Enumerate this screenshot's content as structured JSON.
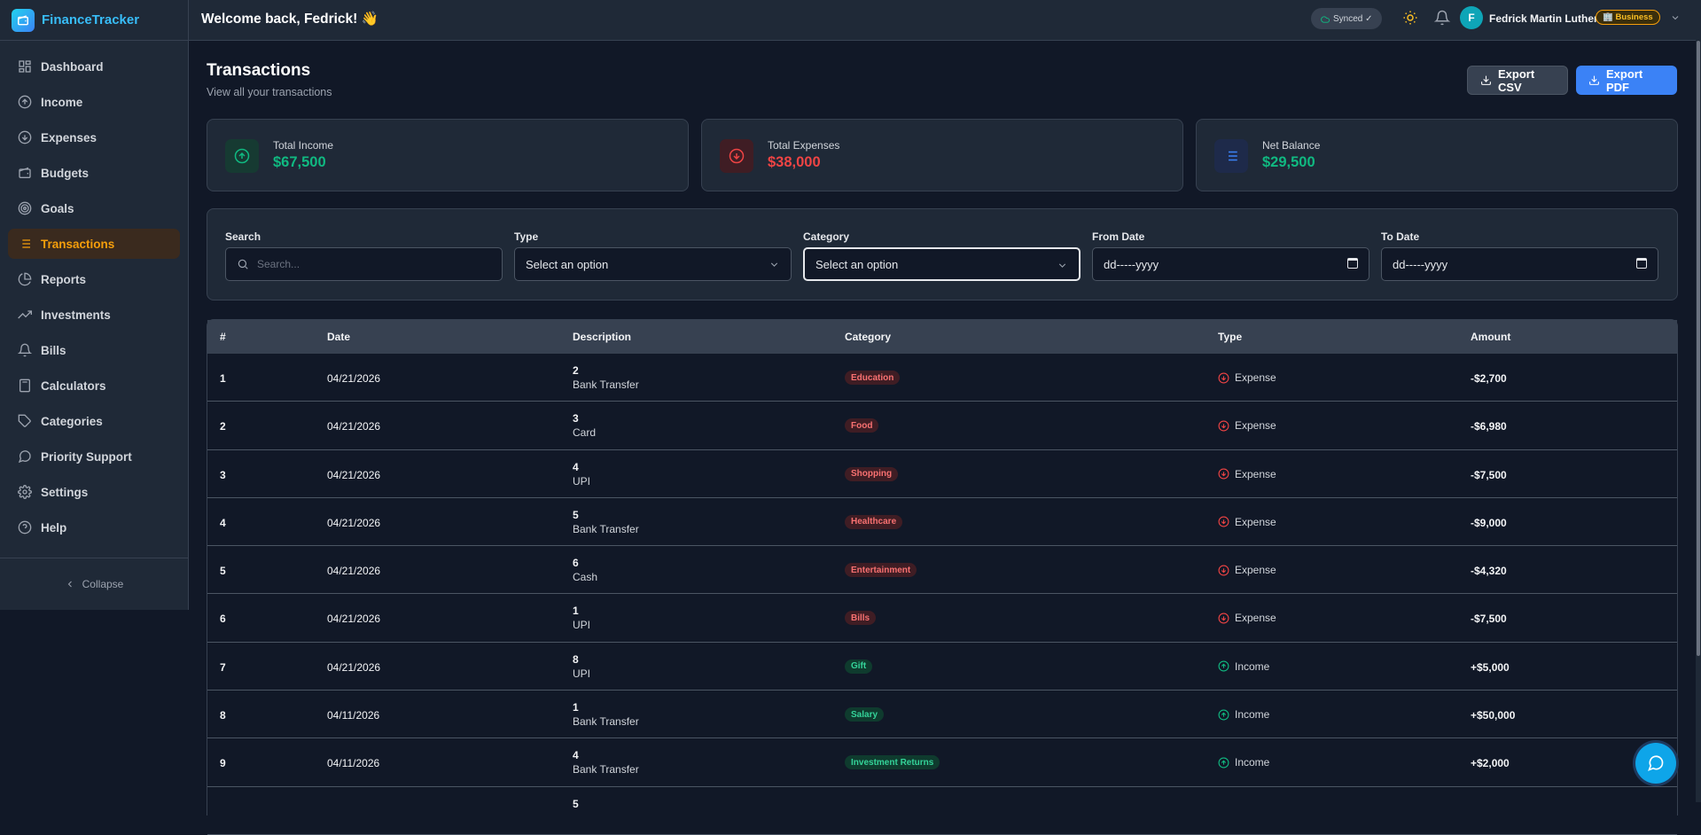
{
  "brand": {
    "name": "FinanceTracker"
  },
  "sidebar": {
    "items": [
      {
        "label": "Dashboard",
        "icon": "dashboard-icon"
      },
      {
        "label": "Income",
        "icon": "arrow-up-circle-icon"
      },
      {
        "label": "Expenses",
        "icon": "arrow-down-circle-icon"
      },
      {
        "label": "Budgets",
        "icon": "wallet-icon"
      },
      {
        "label": "Goals",
        "icon": "target-icon"
      },
      {
        "label": "Transactions",
        "icon": "list-icon",
        "active": true
      },
      {
        "label": "Reports",
        "icon": "pie-chart-icon"
      },
      {
        "label": "Investments",
        "icon": "trending-up-icon"
      },
      {
        "label": "Bills",
        "icon": "bell-icon"
      },
      {
        "label": "Calculators",
        "icon": "calculator-icon"
      },
      {
        "label": "Categories",
        "icon": "tag-icon"
      },
      {
        "label": "Priority Support",
        "icon": "message-icon"
      },
      {
        "label": "Settings",
        "icon": "gear-icon"
      },
      {
        "label": "Help",
        "icon": "help-circle-icon"
      }
    ],
    "collapse_label": "Collapse"
  },
  "header": {
    "welcome": "Welcome back, Fedrick! 👋",
    "synced": "Synced ✓",
    "user_initial": "F",
    "user_name": "Fedrick Martin Luther",
    "plan_badge": "🏢 Business"
  },
  "page": {
    "title": "Transactions",
    "subtitle": "View all your transactions",
    "export_csv": "Export CSV",
    "export_pdf": "Export PDF"
  },
  "stats": {
    "income": {
      "label": "Total Income",
      "value": "$67,500",
      "color": "#10b981"
    },
    "expenses": {
      "label": "Total Expenses",
      "value": "$38,000",
      "color": "#ef4444"
    },
    "balance": {
      "label": "Net Balance",
      "value": "$29,500",
      "color": "#10b981"
    }
  },
  "filters": {
    "search_label": "Search",
    "search_placeholder": "Search...",
    "type_label": "Type",
    "type_value": "Select an option",
    "category_label": "Category",
    "category_value": "Select an option",
    "from_label": "From Date",
    "from_value": "dd-----yyyy",
    "to_label": "To Date",
    "to_value": "dd-----yyyy"
  },
  "table": {
    "headers": [
      "#",
      "Date",
      "Description",
      "Category",
      "Type",
      "Amount"
    ],
    "rows": [
      {
        "num": "1",
        "date": "04/21/2026",
        "desc": "2",
        "method": "Bank Transfer",
        "category": "Education",
        "type": "Expense",
        "amount": "-$2,700"
      },
      {
        "num": "2",
        "date": "04/21/2026",
        "desc": "3",
        "method": "Card",
        "category": "Food",
        "type": "Expense",
        "amount": "-$6,980"
      },
      {
        "num": "3",
        "date": "04/21/2026",
        "desc": "4",
        "method": "UPI",
        "category": "Shopping",
        "type": "Expense",
        "amount": "-$7,500"
      },
      {
        "num": "4",
        "date": "04/21/2026",
        "desc": "5",
        "method": "Bank Transfer",
        "category": "Healthcare",
        "type": "Expense",
        "amount": "-$9,000"
      },
      {
        "num": "5",
        "date": "04/21/2026",
        "desc": "6",
        "method": "Cash",
        "category": "Entertainment",
        "type": "Expense",
        "amount": "-$4,320"
      },
      {
        "num": "6",
        "date": "04/21/2026",
        "desc": "1",
        "method": "UPI",
        "category": "Bills",
        "type": "Expense",
        "amount": "-$7,500"
      },
      {
        "num": "7",
        "date": "04/21/2026",
        "desc": "8",
        "method": "UPI",
        "category": "Gift",
        "type": "Income",
        "amount": "+$5,000"
      },
      {
        "num": "8",
        "date": "04/11/2026",
        "desc": "1",
        "method": "Bank Transfer",
        "category": "Salary",
        "type": "Income",
        "amount": "+$50,000"
      },
      {
        "num": "9",
        "date": "04/11/2026",
        "desc": "4",
        "method": "Bank Transfer",
        "category": "Investment Returns",
        "type": "Income",
        "amount": "+$2,000"
      },
      {
        "num": "",
        "date": "",
        "desc": "5",
        "method": "",
        "category": "",
        "type": "",
        "amount": ""
      }
    ]
  }
}
